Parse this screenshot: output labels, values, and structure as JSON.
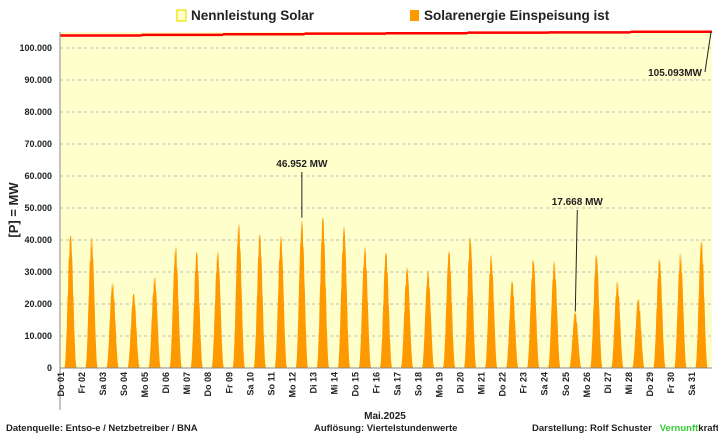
{
  "chart_data": {
    "type": "area",
    "title": "",
    "xlabel": "Mai.2025",
    "ylabel": "[P] = MW",
    "ylim": [
      0,
      105000
    ],
    "yticks": [
      0,
      10000,
      20000,
      30000,
      40000,
      50000,
      60000,
      70000,
      80000,
      90000,
      100000
    ],
    "ytick_labels": [
      "0",
      "10.000",
      "20.000",
      "30.000",
      "40.000",
      "50.000",
      "60.000",
      "70.000",
      "80.000",
      "90.000",
      "100.000"
    ],
    "grid": true,
    "legend": {
      "placement": "top",
      "entries": [
        "Nennleistung Solar",
        "Solarenergie Einspeisung ist"
      ]
    },
    "categories": [
      "Do 01",
      "Fr 02",
      "Sa 03",
      "So 04",
      "Mo 05",
      "Di 06",
      "Mi 07",
      "Do 08",
      "Fr 09",
      "Sa 10",
      "So 11",
      "Mo 12",
      "Di 13",
      "Mi 14",
      "Do 15",
      "Fr 16",
      "Sa 17",
      "So 18",
      "Mo 19",
      "Di 20",
      "Mi 21",
      "Do 22",
      "Fr 23",
      "Sa 24",
      "So 25",
      "Mo 26",
      "Di 27",
      "Mi 28",
      "Do 29",
      "Fr 30",
      "Sa 31"
    ],
    "series": [
      {
        "name": "Solarenergie Einspeisung ist",
        "color": "#ff9900",
        "daily_peak_mw": [
          42000,
          41500,
          27000,
          23500,
          29000,
          38500,
          36500,
          37000,
          46000,
          42000,
          42000,
          46952,
          47500,
          45000,
          38500,
          36500,
          32000,
          31000,
          37000,
          41500,
          36000,
          27500,
          34500,
          34000,
          17668,
          36000,
          27500,
          22000,
          34500,
          36500,
          40500
        ]
      },
      {
        "name": "Nennleistung Solar",
        "color": "#ff0000",
        "step_values_mw": [
          103900,
          104100,
          104300,
          104500,
          104600,
          104800,
          104900,
          105093
        ]
      }
    ],
    "annotations": [
      {
        "text": "46.952 MW",
        "day": 12,
        "value": 46952
      },
      {
        "text": "17.668 MW",
        "day": 25,
        "value": 17668
      },
      {
        "text": "105.093MW",
        "day": 31,
        "value": 105093
      }
    ]
  },
  "footer": {
    "source": "Datenquelle:  Entso-e  / Netzbetreiber / BNA",
    "resolution": "Auflösung: Viertelstundenwerte",
    "author": "Darstellung:  Rolf Schuster",
    "brand_green": "Vernunft",
    "brand_rest": "kraft"
  },
  "colors": {
    "plot_bg": "#ffffcc",
    "solar": "#ff9900",
    "capacity": "#ff0000",
    "brand": "#33cc33"
  }
}
